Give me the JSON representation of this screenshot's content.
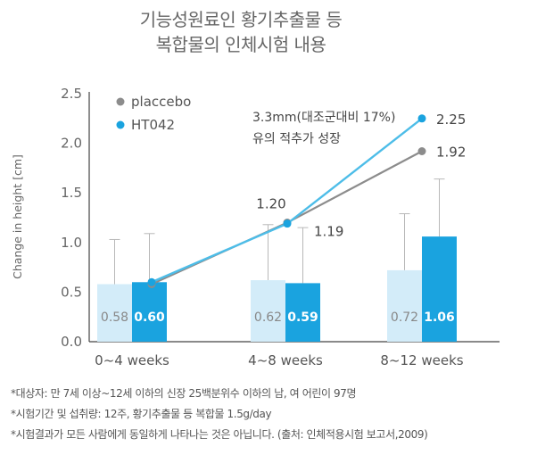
{
  "title_lines": [
    "기능성원료인 황기추출물 등",
    "복합물의 인체시험 내용"
  ],
  "annotation_lines": [
    "3.3mm(대조군대비 17%)",
    "유의 적추가 성장"
  ],
  "footnotes": [
    "*대상자: 만 7세 이상~12세 이하의 신장 25백분위수 이하의 남, 여 어린이 97명",
    "*시험기간 및 섭취량: 12주, 황기추출물 등 복합물 1.5g/day",
    "*시험결과가 모든 사람에게 동일하게 나타나는 것은 아닙니다. (출처: 인체적용시험 보고서,2009)"
  ],
  "chart_data": {
    "type": "bar",
    "title": "기능성원료인 황기추출물 등 복합물의 인체시험 내용",
    "ylabel": "Change in height [cm]",
    "xlabel": "",
    "ylim": [
      0,
      2.5
    ],
    "yticks": [
      "0.0",
      "0.5",
      "1.0",
      "1.5",
      "2.0",
      "2.5"
    ],
    "categories": [
      "0~4 weeks",
      "4~8 weeks",
      "8~12 weeks"
    ],
    "series": [
      {
        "name": "placcebo",
        "values": [
          0.58,
          0.62,
          0.72
        ],
        "labels": [
          "0.58",
          "0.62",
          "0.72"
        ],
        "error_upper": [
          1.03,
          1.18,
          1.29
        ],
        "cumulative": [
          0.58,
          1.2,
          1.92
        ],
        "cumulative_labels": [
          "",
          "1.20",
          "1.92"
        ],
        "bar_color": "#d3ecf9",
        "line_color": "#8c8c8c"
      },
      {
        "name": "HT042",
        "values": [
          0.6,
          0.59,
          1.06
        ],
        "labels": [
          "0.60",
          "0.59",
          "1.06"
        ],
        "error_upper": [
          1.09,
          1.15,
          1.64
        ],
        "cumulative": [
          0.6,
          1.19,
          2.25
        ],
        "cumulative_labels": [
          "",
          "1.19",
          "2.25"
        ],
        "bar_color": "#1aa3df",
        "line_color": "#4dbde8"
      }
    ],
    "legend_position": "top-left",
    "grid": false
  }
}
